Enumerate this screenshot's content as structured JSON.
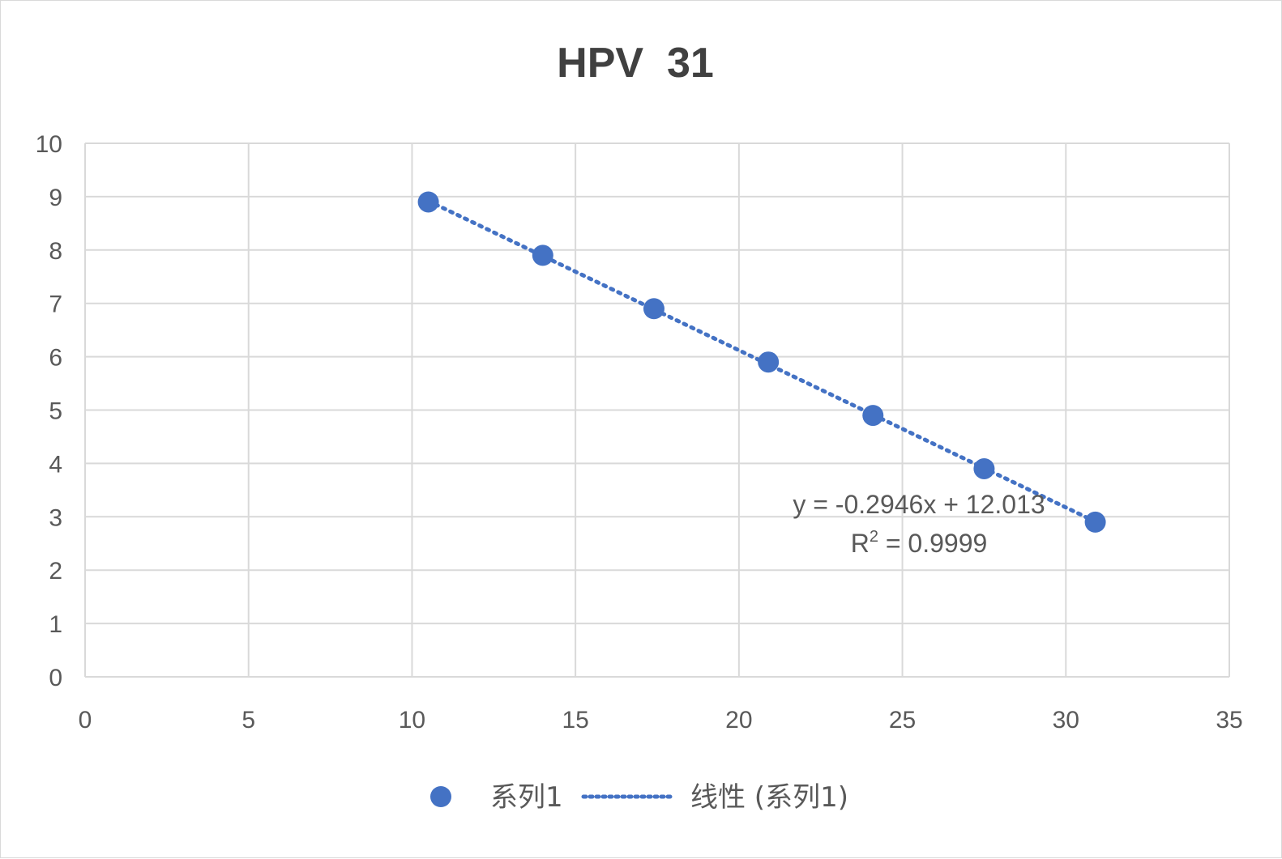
{
  "chart_data": {
    "type": "scatter",
    "title": "HPV  31",
    "xlabel": "",
    "ylabel": "",
    "xlim": [
      0,
      35
    ],
    "ylim": [
      0,
      10
    ],
    "x_ticks": [
      0,
      5,
      10,
      15,
      20,
      25,
      30,
      35
    ],
    "y_ticks": [
      0,
      1,
      2,
      3,
      4,
      5,
      6,
      7,
      8,
      9,
      10
    ],
    "grid": true,
    "legend_position": "bottom",
    "series": [
      {
        "name": "系列1",
        "color": "#4472c4",
        "marker": "circle",
        "points": [
          {
            "x": 10.5,
            "y": 8.9
          },
          {
            "x": 14.0,
            "y": 7.9
          },
          {
            "x": 17.4,
            "y": 6.9
          },
          {
            "x": 20.9,
            "y": 5.9
          },
          {
            "x": 24.1,
            "y": 4.9
          },
          {
            "x": 27.5,
            "y": 3.9
          },
          {
            "x": 30.9,
            "y": 2.9
          }
        ]
      }
    ],
    "trendline": {
      "name": "线性 (系列1)",
      "type": "linear",
      "style": "dotted",
      "color": "#4472c4",
      "slope": -0.2946,
      "intercept": 12.013,
      "x_range": [
        10.5,
        30.9
      ],
      "equation_text": "y = -0.2946x + 12.013",
      "r2_label": "R",
      "r2_superscript": "2",
      "r2_value_text": " = 0.9999"
    }
  }
}
